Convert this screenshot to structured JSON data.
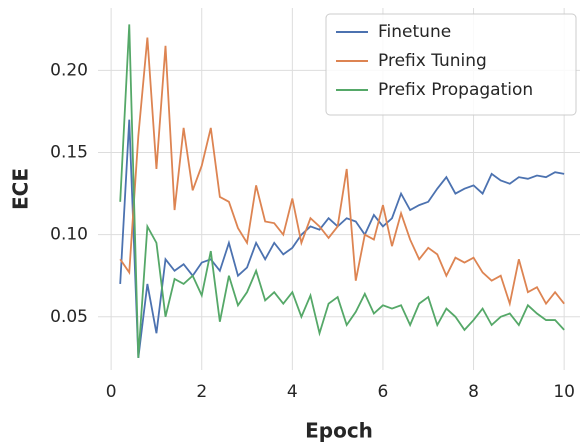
{
  "chart_data": {
    "type": "line",
    "xlabel": "Epoch",
    "ylabel": "ECE",
    "x": [
      0.2,
      0.4,
      0.6,
      0.8,
      1.0,
      1.2,
      1.4,
      1.6,
      1.8,
      2.0,
      2.2,
      2.4,
      2.6,
      2.8,
      3.0,
      3.2,
      3.4,
      3.6,
      3.8,
      4.0,
      4.2,
      4.4,
      4.6,
      4.8,
      5.0,
      5.2,
      5.4,
      5.6,
      5.8,
      6.0,
      6.2,
      6.4,
      6.6,
      6.8,
      7.0,
      7.2,
      7.4,
      7.6,
      7.8,
      8.0,
      8.2,
      8.4,
      8.6,
      8.8,
      9.0,
      9.2,
      9.4,
      9.6,
      9.8,
      10.0
    ],
    "series": [
      {
        "name": "Finetune",
        "color": "#4c72b0",
        "values": [
          0.07,
          0.17,
          0.025,
          0.07,
          0.04,
          0.085,
          0.078,
          0.082,
          0.075,
          0.083,
          0.085,
          0.078,
          0.095,
          0.075,
          0.08,
          0.095,
          0.085,
          0.095,
          0.088,
          0.092,
          0.1,
          0.105,
          0.103,
          0.11,
          0.105,
          0.11,
          0.108,
          0.1,
          0.112,
          0.105,
          0.11,
          0.125,
          0.115,
          0.118,
          0.12,
          0.128,
          0.135,
          0.125,
          0.128,
          0.13,
          0.125,
          0.137,
          0.133,
          0.131,
          0.135,
          0.134,
          0.136,
          0.135,
          0.138,
          0.137
        ]
      },
      {
        "name": "Prefix Tuning",
        "color": "#dd8452",
        "values": [
          0.085,
          0.077,
          0.16,
          0.22,
          0.14,
          0.215,
          0.115,
          0.165,
          0.127,
          0.142,
          0.165,
          0.123,
          0.12,
          0.104,
          0.095,
          0.13,
          0.108,
          0.107,
          0.1,
          0.122,
          0.095,
          0.11,
          0.105,
          0.098,
          0.105,
          0.14,
          0.072,
          0.1,
          0.097,
          0.118,
          0.093,
          0.113,
          0.097,
          0.085,
          0.092,
          0.088,
          0.075,
          0.086,
          0.083,
          0.086,
          0.077,
          0.072,
          0.075,
          0.058,
          0.085,
          0.065,
          0.068,
          0.058,
          0.065,
          0.058
        ]
      },
      {
        "name": "Prefix Propagation",
        "color": "#55a868",
        "values": [
          0.12,
          0.228,
          0.025,
          0.105,
          0.095,
          0.05,
          0.073,
          0.07,
          0.075,
          0.063,
          0.09,
          0.047,
          0.075,
          0.057,
          0.065,
          0.078,
          0.06,
          0.065,
          0.058,
          0.065,
          0.05,
          0.063,
          0.04,
          0.058,
          0.062,
          0.045,
          0.053,
          0.064,
          0.052,
          0.057,
          0.055,
          0.057,
          0.045,
          0.058,
          0.062,
          0.045,
          0.055,
          0.05,
          0.042,
          0.048,
          0.055,
          0.045,
          0.05,
          0.052,
          0.045,
          0.057,
          0.052,
          0.048,
          0.048,
          0.042
        ]
      }
    ],
    "xlim": [
      -0.29,
      10.35
    ],
    "ylim": [
      0.0176,
      0.238
    ],
    "xticks": [
      0,
      2,
      4,
      6,
      8,
      10
    ],
    "yticks": [
      0.05,
      {
        "value": 0.1,
        "label": "0.10"
      },
      0.15,
      {
        "value": 0.2,
        "label": "0.20"
      }
    ],
    "grid": true,
    "legend": "upper right"
  }
}
